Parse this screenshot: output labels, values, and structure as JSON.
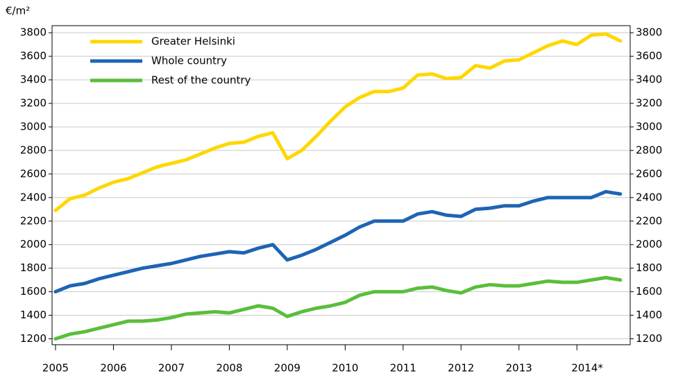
{
  "chart_data": {
    "type": "line",
    "y_label": "€/m²",
    "x": [
      2005,
      2005.25,
      2005.5,
      2005.75,
      2006,
      2006.25,
      2006.5,
      2006.75,
      2007,
      2007.25,
      2007.5,
      2007.75,
      2008,
      2008.25,
      2008.5,
      2008.75,
      2009,
      2009.25,
      2009.5,
      2009.75,
      2010,
      2010.25,
      2010.5,
      2010.75,
      2011,
      2011.25,
      2011.5,
      2011.75,
      2012,
      2012.25,
      2012.5,
      2012.75,
      2013,
      2013.25,
      2013.5,
      2013.75,
      2014,
      2014.25,
      2014.5,
      2014.75
    ],
    "series": [
      {
        "name": "Greater Helsinki",
        "color": "#ffd700",
        "values": [
          2290,
          2390,
          2420,
          2480,
          2530,
          2560,
          2610,
          2660,
          2690,
          2720,
          2770,
          2820,
          2860,
          2870,
          2920,
          2950,
          2730,
          2800,
          2920,
          3050,
          3170,
          3250,
          3300,
          3300,
          3330,
          3440,
          3450,
          3410,
          3420,
          3520,
          3500,
          3560,
          3570,
          3630,
          3690,
          3730,
          3700,
          3780,
          3790,
          3730
        ]
      },
      {
        "name": "Whole country",
        "color": "#1e64b4",
        "values": [
          1600,
          1650,
          1670,
          1710,
          1740,
          1770,
          1800,
          1820,
          1840,
          1870,
          1900,
          1920,
          1940,
          1930,
          1970,
          2000,
          1870,
          1910,
          1960,
          2020,
          2080,
          2150,
          2200,
          2200,
          2200,
          2260,
          2280,
          2250,
          2240,
          2300,
          2310,
          2330,
          2330,
          2370,
          2400,
          2400,
          2400,
          2400,
          2450,
          2430
        ]
      },
      {
        "name": "Rest of the country",
        "color": "#5abe3c",
        "values": [
          1200,
          1240,
          1260,
          1290,
          1320,
          1350,
          1350,
          1360,
          1380,
          1410,
          1420,
          1430,
          1420,
          1450,
          1480,
          1460,
          1390,
          1430,
          1460,
          1480,
          1510,
          1570,
          1600,
          1600,
          1600,
          1630,
          1640,
          1610,
          1590,
          1640,
          1660,
          1650,
          1650,
          1670,
          1690,
          1680,
          1680,
          1700,
          1720,
          1700
        ]
      }
    ],
    "xlim": [
      2004.94,
      2014.92
    ],
    "xticks": [
      2005,
      2006,
      2007,
      2008,
      2009,
      2010,
      2011,
      2012,
      2013,
      {
        "value": 2014,
        "label": "2014*"
      }
    ],
    "ylim": [
      1150,
      3860
    ],
    "yticks": [
      1200,
      1400,
      1600,
      1800,
      2000,
      2200,
      2400,
      2600,
      2800,
      3000,
      3200,
      3400,
      3600,
      3800
    ],
    "grid": true,
    "legend": "top-left"
  }
}
